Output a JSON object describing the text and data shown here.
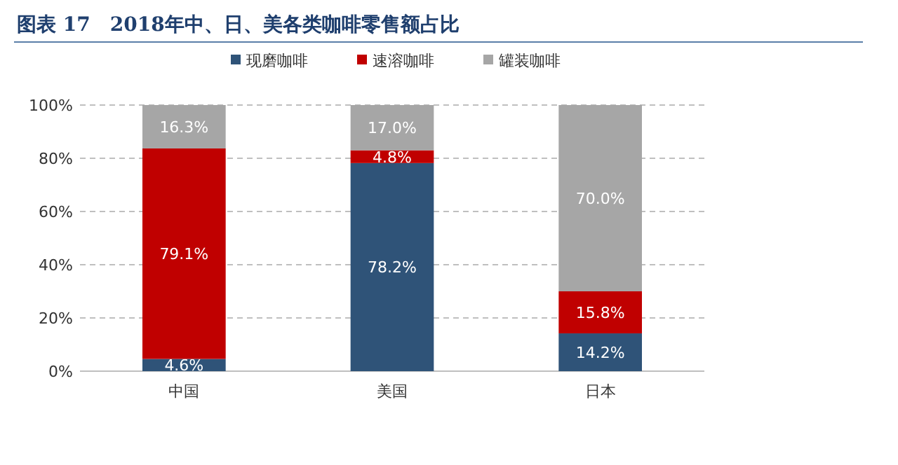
{
  "chart_data": {
    "type": "bar",
    "stacked": true,
    "title": "图表 17　2018年中、日、美各类咖啡零售额占比",
    "categories": [
      "中国",
      "美国",
      "日本"
    ],
    "series": [
      {
        "name": "现磨咖啡",
        "color": "#2f5378",
        "values": [
          4.6,
          78.2,
          14.2
        ],
        "value_labels": [
          "4.6%",
          "78.2%",
          "14.2%"
        ]
      },
      {
        "name": "速溶咖啡",
        "color": "#c00000",
        "values": [
          79.1,
          4.8,
          15.8
        ],
        "value_labels": [
          "79.1%",
          "4.8%",
          "15.8%"
        ]
      },
      {
        "name": "罐装咖啡",
        "color": "#a6a6a6",
        "values": [
          16.3,
          17.0,
          70.0
        ],
        "value_labels": [
          "16.3%",
          "17.0%",
          "70.0%"
        ]
      }
    ],
    "ylim": [
      0,
      100
    ],
    "yticks": [
      {
        "value": 0,
        "label": "0%"
      },
      {
        "value": 20,
        "label": "20%"
      },
      {
        "value": 40,
        "label": "40%"
      },
      {
        "value": 60,
        "label": "60%"
      },
      {
        "value": 80,
        "label": "80%"
      },
      {
        "value": 100,
        "label": "100%"
      }
    ],
    "grid": "y",
    "legend": "top"
  }
}
